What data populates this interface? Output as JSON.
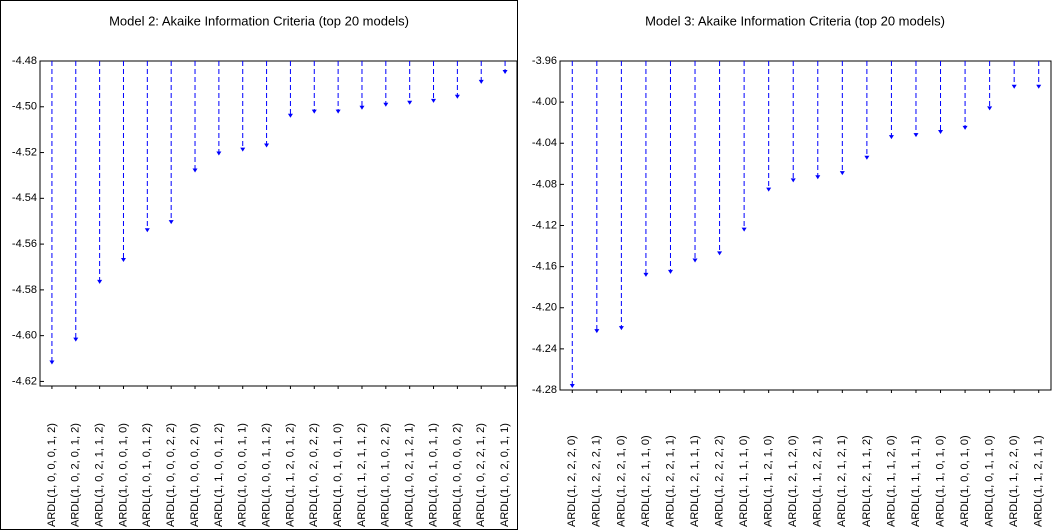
{
  "chart_data": [
    {
      "type": "stem",
      "title": "Model 2: Akaike Information Criteria (top 20 models)",
      "categories": [
        "ARDL(1, 0, 0, 0, 1, 2)",
        "ARDL(1, 0, 2, 0, 1, 2)",
        "ARDL(1, 0, 2, 1, 1, 2)",
        "ARDL(1, 0, 0, 0, 1, 0)",
        "ARDL(1, 0, 1, 0, 1, 2)",
        "ARDL(1, 0, 0, 0, 2, 2)",
        "ARDL(1, 0, 0, 0, 2, 0)",
        "ARDL(1, 1, 0, 0, 1, 2)",
        "ARDL(1, 0, 0, 0, 1, 1)",
        "ARDL(1, 0, 0, 1, 1, 2)",
        "ARDL(1, 1, 2, 0, 1, 2)",
        "ARDL(1, 0, 2, 0, 2, 2)",
        "ARDL(1, 0, 1, 0, 1, 0)",
        "ARDL(1, 1, 2, 1, 1, 2)",
        "ARDL(1, 0, 1, 0, 2, 2)",
        "ARDL(1, 0, 2, 1, 2, 1)",
        "ARDL(1, 0, 1, 0, 1, 1)",
        "ARDL(1, 0, 0, 0, 0, 2)",
        "ARDL(1, 0, 2, 2, 1, 2)",
        "ARDL(1, 0, 2, 0, 1, 1)"
      ],
      "values": [
        -4.6126,
        -4.6026,
        -4.5774,
        -4.5678,
        -4.5548,
        -4.5513,
        -4.5287,
        -4.5213,
        -4.5196,
        -4.5178,
        -4.5048,
        -4.503,
        -4.503,
        -4.5013,
        -4.5,
        -4.4991,
        -4.4983,
        -4.4965,
        -4.49,
        -4.4857
      ],
      "color": "#0000ff",
      "ylim": [
        -4.622,
        -4.48
      ],
      "yticks": [
        -4.48,
        {
          "value": -4.5,
          "label": "-4.50"
        },
        -4.52,
        -4.54,
        -4.56,
        -4.58,
        {
          "value": -4.6,
          "label": "-4.60"
        },
        -4.62
      ]
    },
    {
      "type": "stem",
      "title": "Model 3: Akaike Information Criteria (top 20 models)",
      "categories": [
        "ARDL(1, 2, 2, 2, 0)",
        "ARDL(1, 2, 2, 2, 1)",
        "ARDL(1, 2, 2, 1, 0)",
        "ARDL(1, 2, 1, 1, 0)",
        "ARDL(1, 2, 2, 1, 1)",
        "ARDL(1, 2, 1, 1, 1)",
        "ARDL(1, 2, 2, 2, 2)",
        "ARDL(1, 1, 1, 1, 0)",
        "ARDL(1, 1, 2, 1, 0)",
        "ARDL(1, 2, 1, 2, 0)",
        "ARDL(1, 1, 2, 2, 1)",
        "ARDL(1, 2, 1, 2, 1)",
        "ARDL(1, 2, 1, 1, 2)",
        "ARDL(1, 1, 1, 2, 0)",
        "ARDL(1, 1, 1, 1, 1)",
        "ARDL(1, 1, 0, 1, 0)",
        "ARDL(1, 0, 0, 1, 0)",
        "ARDL(1, 0, 1, 1, 0)",
        "ARDL(1, 1, 2, 2, 0)",
        "ARDL(1, 1, 2, 1, 1)"
      ],
      "values": [
        -4.278,
        -4.2247,
        -4.2218,
        -4.17,
        -4.167,
        -4.156,
        -4.149,
        -4.126,
        -4.087,
        -4.078,
        -4.075,
        -4.071,
        -4.056,
        -4.036,
        -4.034,
        -4.031,
        -4.027,
        -4.008,
        -3.987,
        -3.987
      ],
      "color": "#0000ff",
      "ylim": [
        -4.28,
        -3.96
      ],
      "yticks": [
        -3.96,
        {
          "value": -4.0,
          "label": "-4.00"
        },
        -4.04,
        -4.08,
        -4.12,
        -4.16,
        {
          "value": -4.2,
          "label": "-4.20"
        },
        -4.24,
        -4.28
      ]
    }
  ]
}
